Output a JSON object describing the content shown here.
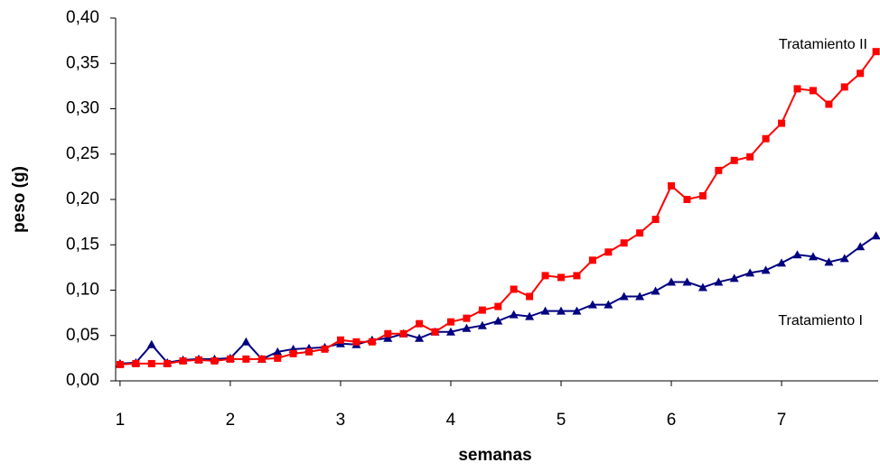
{
  "chart_data": {
    "type": "line",
    "xlabel": "semanas",
    "ylabel": "peso (g)",
    "x": [
      1,
      1.143,
      1.286,
      1.429,
      1.571,
      1.714,
      1.857,
      2,
      2.143,
      2.286,
      2.429,
      2.571,
      2.714,
      2.857,
      3,
      3.143,
      3.286,
      3.429,
      3.571,
      3.714,
      3.857,
      4,
      4.143,
      4.286,
      4.429,
      4.571,
      4.714,
      4.857,
      5,
      5.143,
      5.286,
      5.429,
      5.571,
      5.714,
      5.857,
      6,
      6.143,
      6.286,
      6.429,
      6.571,
      6.714,
      6.857,
      7,
      7.143,
      7.286,
      7.429,
      7.571,
      7.714,
      7.857
    ],
    "series": [
      {
        "name": "Tratamiento I",
        "color": "#000080",
        "marker": "triangle",
        "values": [
          0.019,
          0.02,
          0.04,
          0.02,
          0.023,
          0.024,
          0.024,
          0.025,
          0.043,
          0.024,
          0.032,
          0.035,
          0.036,
          0.037,
          0.041,
          0.04,
          0.045,
          0.047,
          0.052,
          0.047,
          0.054,
          0.054,
          0.058,
          0.061,
          0.066,
          0.073,
          0.071,
          0.077,
          0.077,
          0.077,
          0.084,
          0.084,
          0.093,
          0.093,
          0.099,
          0.109,
          0.109,
          0.103,
          0.109,
          0.113,
          0.119,
          0.122,
          0.13,
          0.139,
          0.137,
          0.131,
          0.135,
          0.148,
          0.16
        ]
      },
      {
        "name": "Tratamiento II",
        "color": "#ff0000",
        "marker": "square",
        "values": [
          0.018,
          0.019,
          0.019,
          0.019,
          0.022,
          0.023,
          0.022,
          0.024,
          0.024,
          0.024,
          0.025,
          0.03,
          0.032,
          0.035,
          0.045,
          0.043,
          0.043,
          0.052,
          0.052,
          0.063,
          0.054,
          0.065,
          0.069,
          0.078,
          0.082,
          0.101,
          0.093,
          0.116,
          0.114,
          0.116,
          0.133,
          0.142,
          0.152,
          0.163,
          0.178,
          0.215,
          0.2,
          0.204,
          0.232,
          0.243,
          0.247,
          0.267,
          0.284,
          0.322,
          0.32,
          0.305,
          0.324,
          0.339,
          0.363
        ]
      }
    ],
    "xlim": [
      0.96,
      7.86
    ],
    "xticks": [
      1,
      2,
      3,
      4,
      5,
      6,
      7
    ],
    "ylim": [
      0,
      0.4
    ],
    "yticks": [
      {
        "value": 0,
        "label": "0,00"
      },
      {
        "value": 0.05,
        "label": "0,05"
      },
      {
        "value": 0.1,
        "label": "0,10"
      },
      {
        "value": 0.15,
        "label": "0,15"
      },
      {
        "value": 0.2,
        "label": "0,20"
      },
      {
        "value": 0.25,
        "label": "0,25"
      },
      {
        "value": 0.3,
        "label": "0,30"
      },
      {
        "value": 0.35,
        "label": "0,35"
      },
      {
        "value": 0.4,
        "label": "0,40"
      }
    ],
    "grid": false
  }
}
